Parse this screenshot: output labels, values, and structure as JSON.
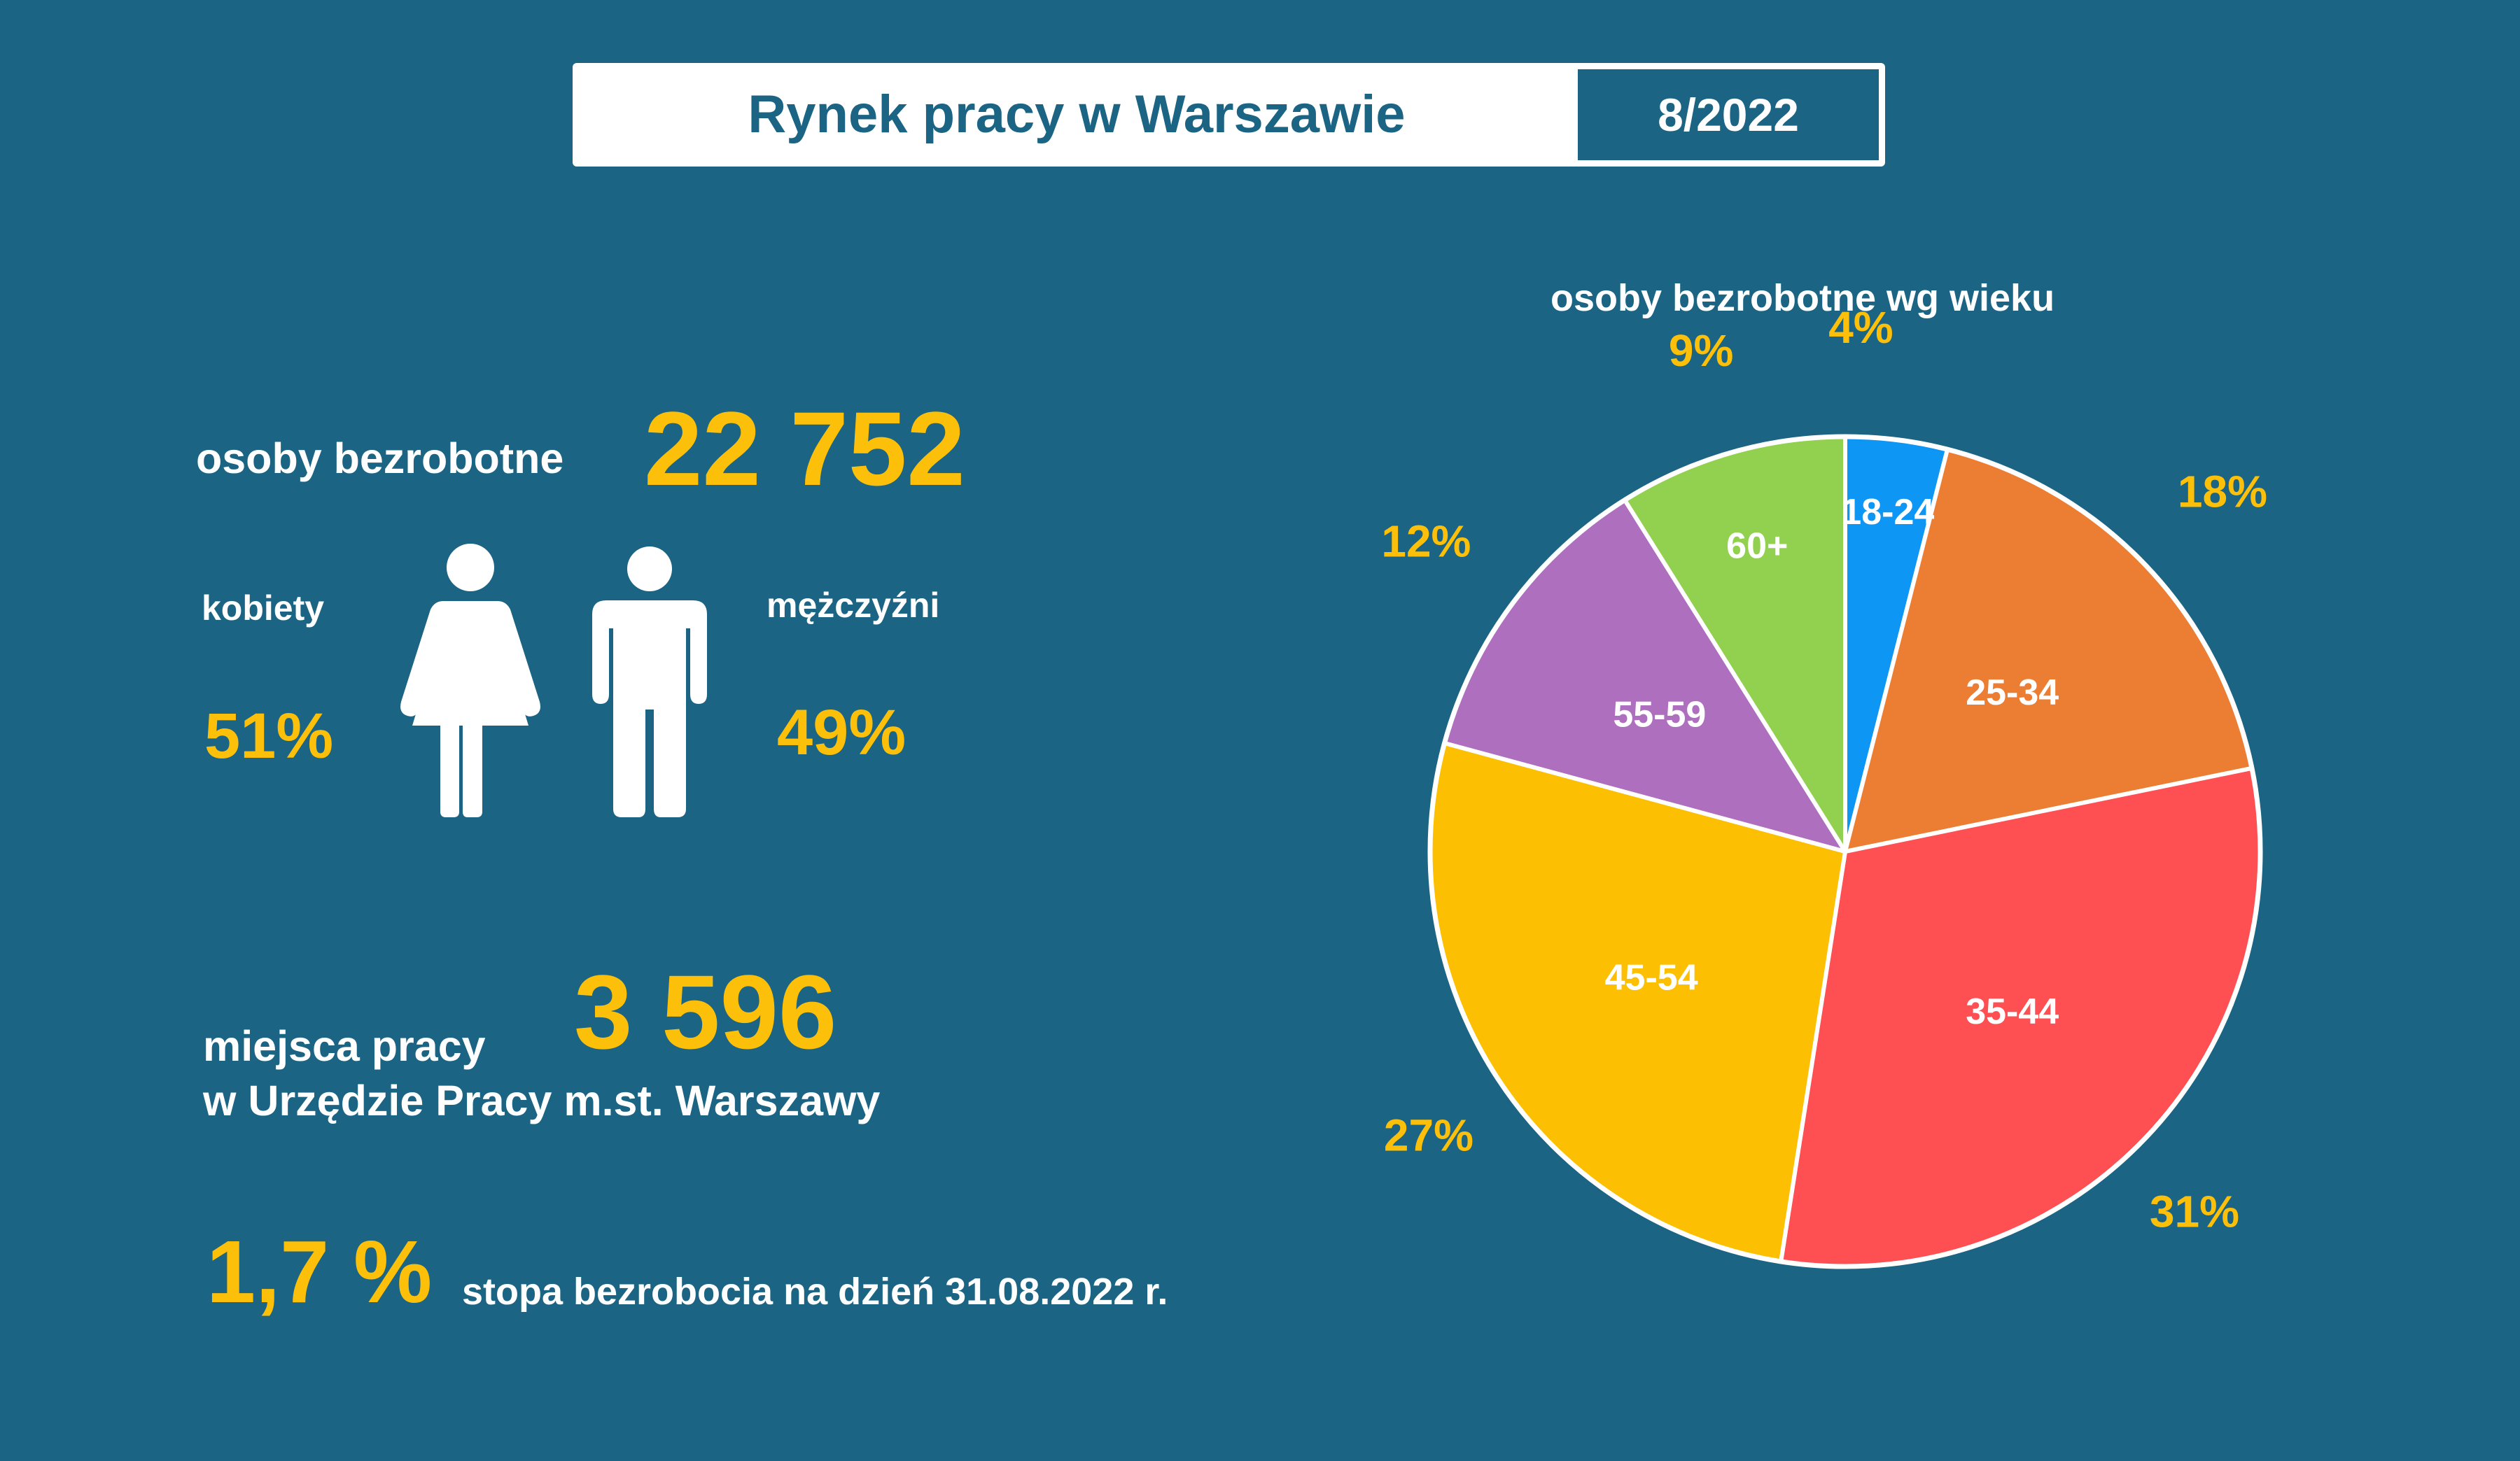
{
  "header": {
    "title": "Rynek pracy w Warszawie",
    "date": "8/2022"
  },
  "unemployed": {
    "label": "osoby bezrobotne",
    "value": "22 752"
  },
  "gender": {
    "women_label": "kobiety",
    "women_value": "51%",
    "men_label": "mężczyźni",
    "men_value": "49%",
    "women_icon": "woman-icon",
    "men_icon": "man-icon"
  },
  "jobs": {
    "label_line1": "miejsca pracy",
    "label_line2": "w Urzędzie Pracy m.st. Warszawy",
    "value": "3 596"
  },
  "rate": {
    "value": "1,7 %",
    "label": "stopa bezrobocia na dzień 31.08.2022 r."
  },
  "colors": {
    "background": "#1b6483",
    "accent": "#fcbf0a",
    "text": "#ffffff"
  },
  "chart_data": {
    "type": "pie",
    "title": "osoby bezrobotne wg wieku",
    "categories": [
      "18-24",
      "25-34",
      "35-44",
      "45-54",
      "55-59",
      "60+"
    ],
    "values": [
      4,
      18,
      31,
      27,
      12,
      9
    ],
    "value_labels": [
      "4%",
      "18%",
      "31%",
      "27%",
      "12%",
      "9%"
    ],
    "colors": [
      "#0e96f5",
      "#ec7e33",
      "#fe4f52",
      "#fdbf01",
      "#ae6fbf",
      "#92d050"
    ]
  }
}
